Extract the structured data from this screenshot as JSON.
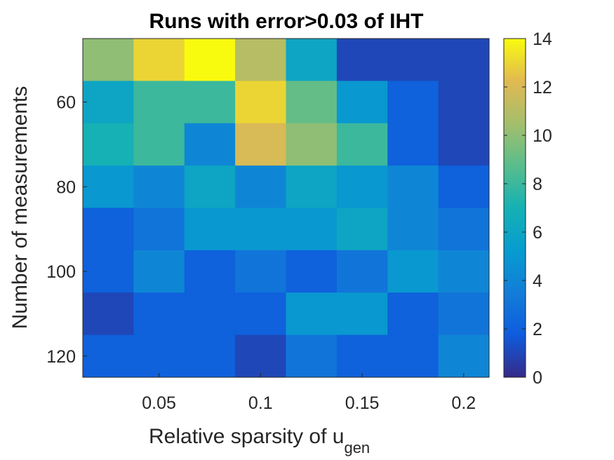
{
  "chart_data": {
    "type": "heatmap",
    "title": "Runs with error>0.03 of IHT",
    "xlabel": {
      "text": "Relative sparsity of u",
      "subscript": "gen"
    },
    "ylabel": "Number of measurements",
    "x_ticks": [
      "0.05",
      "0.1",
      "0.15",
      "0.2"
    ],
    "y_ticks": [
      "60",
      "80",
      "100",
      "120"
    ],
    "x_values": [
      0.025,
      0.05,
      0.075,
      0.1,
      0.125,
      0.15,
      0.175,
      0.2
    ],
    "y_values": [
      50,
      60,
      70,
      80,
      90,
      100,
      110,
      120
    ],
    "xlim": [
      0.0125,
      0.2125
    ],
    "ylim": [
      45,
      125
    ],
    "colormap": "parula",
    "clim": [
      0,
      14
    ],
    "colorbar_ticks": [
      "0",
      "2",
      "4",
      "6",
      "8",
      "10",
      "12",
      "14"
    ],
    "z": [
      [
        10,
        13,
        14,
        11,
        6,
        1,
        1,
        1
      ],
      [
        6,
        8,
        8,
        13,
        9,
        5,
        2,
        1
      ],
      [
        7,
        8,
        4,
        12,
        10,
        8,
        2,
        1
      ],
      [
        5,
        4,
        6,
        4,
        6,
        5,
        4,
        2
      ],
      [
        2,
        3,
        5,
        5,
        5,
        6,
        4,
        3
      ],
      [
        2,
        4,
        2,
        3,
        2,
        3,
        5,
        4
      ],
      [
        1,
        2,
        2,
        2,
        5,
        5,
        2,
        3
      ],
      [
        2,
        2,
        2,
        1,
        3,
        2,
        2,
        4
      ]
    ]
  }
}
